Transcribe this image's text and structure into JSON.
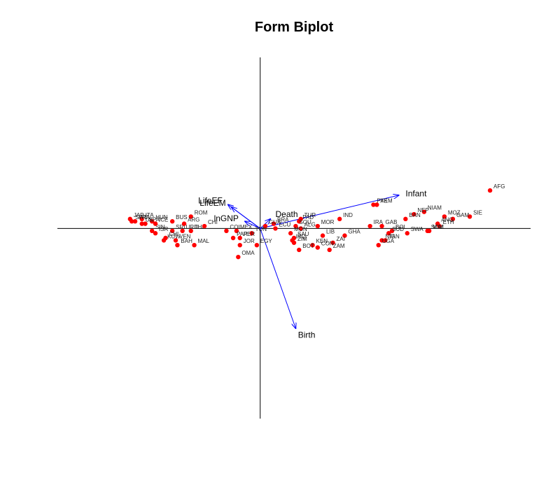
{
  "chart_data": {
    "type": "scatter",
    "title": "Form Biplot",
    "xlim": [
      -1.2,
      1.6
    ],
    "ylim": [
      -0.8,
      0.72
    ],
    "point_color": "#ff0000",
    "vector_color": "#0000ff",
    "axes_color": "#000000",
    "points": [
      {
        "label": "AFG",
        "x": 1.36,
        "y": 0.16
      },
      {
        "label": "SIE",
        "x": 1.24,
        "y": 0.05
      },
      {
        "label": "GAM",
        "x": 1.14,
        "y": 0.04
      },
      {
        "label": "MOZ",
        "x": 1.09,
        "y": 0.05
      },
      {
        "label": "ANG",
        "x": 1.05,
        "y": 0.02
      },
      {
        "label": "ETH",
        "x": 1.06,
        "y": 0.01
      },
      {
        "label": "MAL",
        "x": 1.0,
        "y": -0.01
      },
      {
        "label": "SOM",
        "x": 0.99,
        "y": -0.01
      },
      {
        "label": "NIAM",
        "x": 0.97,
        "y": 0.07
      },
      {
        "label": "NEP",
        "x": 0.91,
        "y": 0.06
      },
      {
        "label": "BAN",
        "x": 0.86,
        "y": 0.04
      },
      {
        "label": "PAK",
        "x": 0.67,
        "y": 0.1
      },
      {
        "label": "YEM",
        "x": 0.69,
        "y": 0.1
      },
      {
        "label": "GAB",
        "x": 0.72,
        "y": 0.01
      },
      {
        "label": "IRA",
        "x": 0.65,
        "y": 0.01
      },
      {
        "label": "BOL",
        "x": 0.78,
        "y": -0.01
      },
      {
        "label": "SUD",
        "x": 0.76,
        "y": -0.02
      },
      {
        "label": "SWA",
        "x": 0.87,
        "y": -0.02
      },
      {
        "label": "NIG",
        "x": 0.72,
        "y": -0.05
      },
      {
        "label": "TAN",
        "x": 0.74,
        "y": -0.05
      },
      {
        "label": "UGA",
        "x": 0.7,
        "y": -0.07
      },
      {
        "label": "IND",
        "x": 0.47,
        "y": 0.04
      },
      {
        "label": "MOR",
        "x": 0.34,
        "y": 0.01
      },
      {
        "label": "TUR",
        "x": 0.24,
        "y": 0.04
      },
      {
        "label": "PAD",
        "x": 0.23,
        "y": 0.03
      },
      {
        "label": "SOU",
        "x": 0.21,
        "y": 0.01
      },
      {
        "label": "BRA",
        "x": 0.08,
        "y": 0.02
      },
      {
        "label": "ECU",
        "x": 0.09,
        "y": 0.0
      },
      {
        "label": "ALG",
        "x": 0.24,
        "y": 0.0
      },
      {
        "label": "MON",
        "x": 0.18,
        "y": -0.02
      },
      {
        "label": "SAU",
        "x": 0.2,
        "y": -0.04
      },
      {
        "label": "IRQ",
        "x": 0.19,
        "y": -0.05
      },
      {
        "label": "ZIM",
        "x": 0.2,
        "y": -0.06
      },
      {
        "label": "LIB",
        "x": 0.37,
        "y": -0.03
      },
      {
        "label": "GHA",
        "x": 0.5,
        "y": -0.03
      },
      {
        "label": "ZAI",
        "x": 0.43,
        "y": -0.06
      },
      {
        "label": "KEN",
        "x": 0.31,
        "y": -0.07
      },
      {
        "label": "CON",
        "x": 0.34,
        "y": -0.08
      },
      {
        "label": "BOT",
        "x": 0.23,
        "y": -0.09
      },
      {
        "label": "ZAM",
        "x": 0.41,
        "y": -0.09
      },
      {
        "label": "GUA",
        "x": 0.03,
        "y": 0.01
      },
      {
        "label": "TUN",
        "x": -0.05,
        "y": -0.02
      },
      {
        "label": "MEX",
        "x": -0.14,
        "y": -0.01
      },
      {
        "label": "COL",
        "x": -0.2,
        "y": -0.01
      },
      {
        "label": "PER",
        "x": -0.12,
        "y": -0.04
      },
      {
        "label": "PAR",
        "x": -0.16,
        "y": -0.04
      },
      {
        "label": "JOR",
        "x": -0.12,
        "y": -0.07
      },
      {
        "label": "EGY",
        "x": -0.02,
        "y": -0.07
      },
      {
        "label": "OMA",
        "x": -0.13,
        "y": -0.12
      },
      {
        "label": "SIN",
        "x": -0.64,
        "y": -0.01
      },
      {
        "label": "ISR",
        "x": -0.62,
        "y": -0.02
      },
      {
        "label": "SRI",
        "x": -0.52,
        "y": -0.01
      },
      {
        "label": "URU",
        "x": -0.46,
        "y": -0.01
      },
      {
        "label": "THA",
        "x": -0.41,
        "y": -0.01
      },
      {
        "label": "CHI",
        "x": -0.56,
        "y": -0.04
      },
      {
        "label": "VEN",
        "x": -0.5,
        "y": -0.05
      },
      {
        "label": "KUW",
        "x": -0.57,
        "y": -0.05
      },
      {
        "label": "BAH",
        "x": -0.49,
        "y": -0.07
      },
      {
        "label": "MAL",
        "x": -0.39,
        "y": -0.07
      },
      {
        "label": "ROM",
        "x": -0.41,
        "y": 0.05
      },
      {
        "label": "CHI",
        "x": -0.33,
        "y": 0.01
      },
      {
        "label": "ARG",
        "x": -0.45,
        "y": 0.02
      },
      {
        "label": "BUS",
        "x": -0.52,
        "y": 0.03
      },
      {
        "label": "JAP",
        "x": -0.77,
        "y": 0.04
      },
      {
        "label": "ITA",
        "x": -0.7,
        "y": 0.04
      },
      {
        "label": "HUN",
        "x": -0.64,
        "y": 0.03
      },
      {
        "label": "SWE",
        "x": -0.76,
        "y": 0.03
      },
      {
        "label": "FRA",
        "x": -0.74,
        "y": 0.03
      },
      {
        "label": "UK",
        "x": -0.7,
        "y": 0.02
      },
      {
        "label": "SPA",
        "x": -0.68,
        "y": 0.02
      },
      {
        "label": "ICE",
        "x": -0.62,
        "y": 0.02
      }
    ],
    "vectors": [
      {
        "label": "Infant",
        "x": 0.82,
        "y": 0.14
      },
      {
        "label": "Birth",
        "x": 0.21,
        "y": -0.42
      },
      {
        "label": "Death",
        "x": 0.06,
        "y": 0.04
      },
      {
        "label": "lnGNP",
        "x": -0.09,
        "y": 0.03
      },
      {
        "label": "LifeEF",
        "x": -0.19,
        "y": 0.1
      },
      {
        "label": "LifeEM",
        "x": -0.17,
        "y": 0.09
      }
    ]
  }
}
